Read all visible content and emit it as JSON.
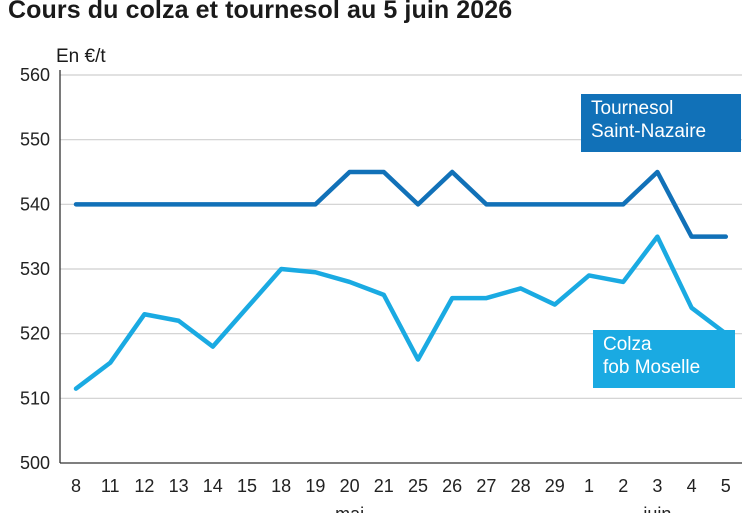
{
  "colors": {
    "tournesol": "#1171b8",
    "colza": "#1aaae2",
    "grid": "#cfcfcf",
    "axis": "#333333"
  },
  "chart_data": {
    "type": "line",
    "title": "Cours du colza et tournesol au 5 juin 2026",
    "ylabel": "En €/t",
    "xlabel": "",
    "ylim": [
      500,
      560
    ],
    "yticks": [
      500,
      510,
      520,
      530,
      540,
      550,
      560
    ],
    "grid": true,
    "categories": [
      "8",
      "11",
      "12",
      "13",
      "14",
      "15",
      "18",
      "19",
      "20",
      "21",
      "25",
      "26",
      "27",
      "28",
      "29",
      "1",
      "2",
      "3",
      "4",
      "5"
    ],
    "month_labels": [
      {
        "label": "mai",
        "at_index": 8
      },
      {
        "label": "juin",
        "at_index": 17
      }
    ],
    "series": [
      {
        "name": "Tournesol Saint-Nazaire",
        "name_lines": [
          "Tournesol",
          "Saint-Nazaire"
        ],
        "values": [
          540,
          540,
          540,
          540,
          540,
          540,
          540,
          540,
          545,
          545,
          540,
          545,
          540,
          540,
          540,
          540,
          540,
          545,
          535,
          535
        ]
      },
      {
        "name": "Colza fob Moselle",
        "name_lines": [
          "Colza",
          "fob Moselle"
        ],
        "values": [
          511.5,
          515.5,
          523,
          522,
          518,
          524,
          530,
          529.5,
          528,
          526,
          516,
          525.5,
          525.5,
          527,
          524.5,
          529,
          528,
          535,
          524,
          520
        ]
      }
    ]
  }
}
